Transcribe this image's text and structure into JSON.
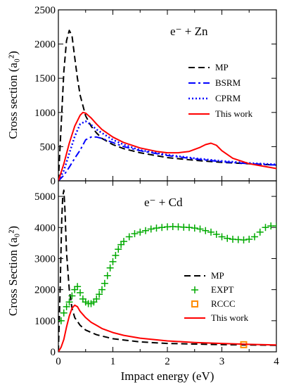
{
  "xlabel": "Impact energy (eV)",
  "chart_data": [
    {
      "type": "line",
      "panel_label": "e⁻ + Zn",
      "ylabel": "Cross section (a₀²)",
      "xlabel": "Impact energy (eV)",
      "xlim": [
        0,
        4
      ],
      "ylim": [
        0,
        2500
      ],
      "x_ticks": [
        "0",
        "1",
        "2",
        "3",
        "4"
      ],
      "y_ticks": [
        0,
        500,
        1000,
        1500,
        2000,
        2500
      ],
      "legend_position": "right",
      "series": [
        {
          "name": "MP",
          "style": "dashed",
          "color": "#000000",
          "x": [
            0.0,
            0.05,
            0.1,
            0.15,
            0.2,
            0.25,
            0.3,
            0.35,
            0.4,
            0.5,
            0.6,
            0.7,
            0.8,
            1.0,
            1.2,
            1.5,
            2.0,
            2.5,
            3.0,
            3.5,
            4.0
          ],
          "y": [
            0,
            800,
            1600,
            2050,
            2200,
            2120,
            1800,
            1500,
            1250,
            950,
            800,
            700,
            620,
            530,
            470,
            410,
            340,
            300,
            270,
            250,
            230
          ]
        },
        {
          "name": "BSRM",
          "style": "dashdot",
          "color": "#0000ff",
          "x": [
            0.0,
            0.1,
            0.2,
            0.3,
            0.4,
            0.5,
            0.6,
            0.7,
            0.8,
            0.9,
            1.0,
            1.2,
            1.5,
            2.0,
            2.5,
            3.0,
            3.5,
            4.0
          ],
          "y": [
            0,
            80,
            200,
            330,
            450,
            600,
            640,
            640,
            620,
            590,
            560,
            500,
            440,
            370,
            320,
            280,
            250,
            230
          ]
        },
        {
          "name": "CPRM",
          "style": "dotted",
          "color": "#0000ff",
          "x": [
            0.0,
            0.1,
            0.2,
            0.3,
            0.4,
            0.5,
            0.6,
            0.7,
            0.8,
            1.0,
            1.2,
            1.5,
            2.0,
            2.5,
            3.0,
            3.5,
            4.0
          ],
          "y": [
            0,
            150,
            400,
            650,
            830,
            870,
            820,
            750,
            700,
            600,
            530,
            450,
            380,
            330,
            290,
            260,
            240
          ]
        },
        {
          "name": "This work",
          "style": "solid",
          "color": "#ff0000",
          "x": [
            0.0,
            0.1,
            0.2,
            0.3,
            0.4,
            0.45,
            0.5,
            0.6,
            0.7,
            0.8,
            1.0,
            1.2,
            1.5,
            1.8,
            2.0,
            2.2,
            2.4,
            2.6,
            2.7,
            2.8,
            2.9,
            3.0,
            3.2,
            3.5,
            4.0
          ],
          "y": [
            0,
            250,
            550,
            800,
            960,
            1000,
            990,
            920,
            830,
            750,
            640,
            560,
            480,
            430,
            410,
            410,
            430,
            490,
            530,
            550,
            520,
            440,
            330,
            250,
            180
          ]
        }
      ]
    },
    {
      "type": "line",
      "panel_label": "e⁻ + Cd",
      "ylabel": "Cross Section (a₀²)",
      "xlabel": "Impact energy (eV)",
      "xlim": [
        0,
        4
      ],
      "ylim": [
        0,
        5500
      ],
      "x_ticks": [
        "0",
        "1",
        "2",
        "3",
        "4"
      ],
      "y_ticks": [
        0,
        1000,
        2000,
        3000,
        4000,
        5000
      ],
      "legend_position": "right",
      "series": [
        {
          "name": "MP",
          "style": "dashed",
          "color": "#000000",
          "x": [
            0.0,
            0.03,
            0.06,
            0.08,
            0.1,
            0.12,
            0.15,
            0.2,
            0.25,
            0.3,
            0.4,
            0.5,
            0.7,
            1.0,
            1.5,
            2.0,
            3.0,
            4.0
          ],
          "y": [
            0,
            1800,
            4200,
            5000,
            5200,
            4600,
            3200,
            2000,
            1400,
            1100,
            850,
            700,
            550,
            420,
            320,
            270,
            230,
            210
          ]
        },
        {
          "name": "EXPT",
          "style": "plus",
          "color": "#00aa00",
          "x": [
            0.05,
            0.1,
            0.15,
            0.2,
            0.25,
            0.3,
            0.35,
            0.4,
            0.45,
            0.5,
            0.55,
            0.6,
            0.65,
            0.7,
            0.75,
            0.8,
            0.85,
            0.9,
            0.95,
            1.0,
            1.05,
            1.1,
            1.15,
            1.2,
            1.3,
            1.4,
            1.5,
            1.6,
            1.7,
            1.8,
            1.9,
            2.0,
            2.1,
            2.2,
            2.3,
            2.4,
            2.5,
            2.6,
            2.7,
            2.8,
            2.9,
            3.0,
            3.1,
            3.2,
            3.3,
            3.4,
            3.5,
            3.6,
            3.7,
            3.8,
            3.9,
            4.0
          ],
          "y": [
            1000,
            1250,
            1450,
            1600,
            1800,
            2000,
            2100,
            1900,
            1700,
            1600,
            1550,
            1550,
            1600,
            1700,
            1850,
            2000,
            2200,
            2450,
            2700,
            2900,
            3100,
            3300,
            3450,
            3550,
            3700,
            3800,
            3850,
            3900,
            3950,
            3980,
            4000,
            4020,
            4030,
            4020,
            4010,
            4000,
            3980,
            3950,
            3900,
            3850,
            3780,
            3700,
            3650,
            3620,
            3610,
            3600,
            3620,
            3700,
            3850,
            4000,
            4050,
            4050
          ]
        },
        {
          "name": "RCCC",
          "style": "square",
          "color": "#ff8c00",
          "x": [
            3.4
          ],
          "y": [
            230
          ]
        },
        {
          "name": "This work",
          "style": "solid",
          "color": "#ff0000",
          "x": [
            0.0,
            0.05,
            0.1,
            0.15,
            0.2,
            0.25,
            0.3,
            0.35,
            0.4,
            0.5,
            0.6,
            0.7,
            0.8,
            1.0,
            1.2,
            1.5,
            2.0,
            2.5,
            3.0,
            3.5,
            4.0
          ],
          "y": [
            0,
            150,
            400,
            800,
            1150,
            1400,
            1500,
            1450,
            1300,
            1100,
            950,
            850,
            750,
            620,
            530,
            440,
            350,
            300,
            270,
            240,
            220
          ]
        }
      ]
    }
  ]
}
